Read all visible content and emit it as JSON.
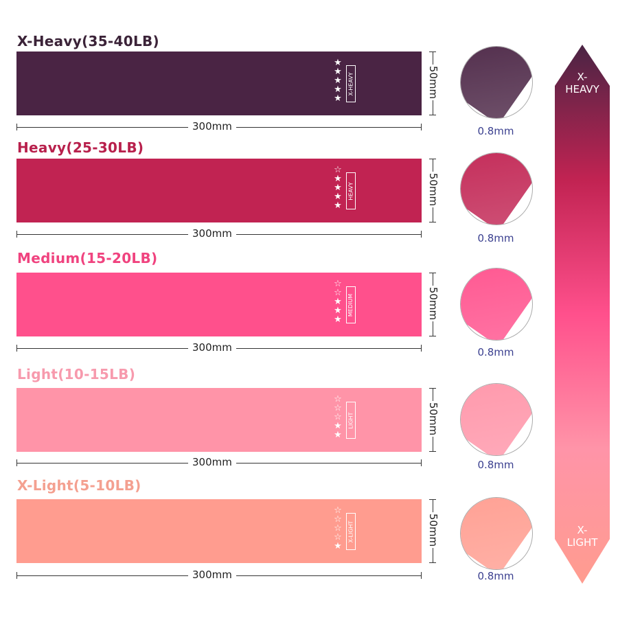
{
  "bands": [
    {
      "title": "X-Heavy(35-40LB)",
      "length": "300mm",
      "width": "50mm",
      "thickness": "0.8mm",
      "level_label": "X-HEAVY",
      "stars_filled": 5,
      "stars_total": 5,
      "band_color": "#4a2444",
      "title_color": "#3b2338"
    },
    {
      "title": "Heavy(25-30LB)",
      "length": "300mm",
      "width": "50mm",
      "thickness": "0.8mm",
      "level_label": "HEAVY",
      "stars_filled": 4,
      "stars_total": 5,
      "band_color": "#c12352",
      "title_color": "#b8204c"
    },
    {
      "title": "Medium(15-20LB)",
      "length": "300mm",
      "width": "50mm",
      "thickness": "0.8mm",
      "level_label": "MEDIUM",
      "stars_filled": 3,
      "stars_total": 5,
      "band_color": "#ff508c",
      "title_color": "#f0437f"
    },
    {
      "title": "Light(10-15LB)",
      "length": "300mm",
      "width": "50mm",
      "thickness": "0.8mm",
      "level_label": "LIGHT",
      "stars_filled": 2,
      "stars_total": 5,
      "band_color": "#ff94a8",
      "title_color": "#f79aad"
    },
    {
      "title": "X-Light(5-10LB)",
      "length": "300mm",
      "width": "50mm",
      "thickness": "0.8mm",
      "level_label": "X-LIGHT",
      "stars_filled": 1,
      "stars_total": 5,
      "band_color": "#ff9c8f",
      "title_color": "#f4a090"
    }
  ],
  "scale": {
    "top_label": "X-\nHEAVY",
    "bottom_label": "X-\nLIGHT",
    "gradient": [
      "#4a2444",
      "#c12352",
      "#ff508c",
      "#ff94a8",
      "#ff9c8f"
    ]
  }
}
